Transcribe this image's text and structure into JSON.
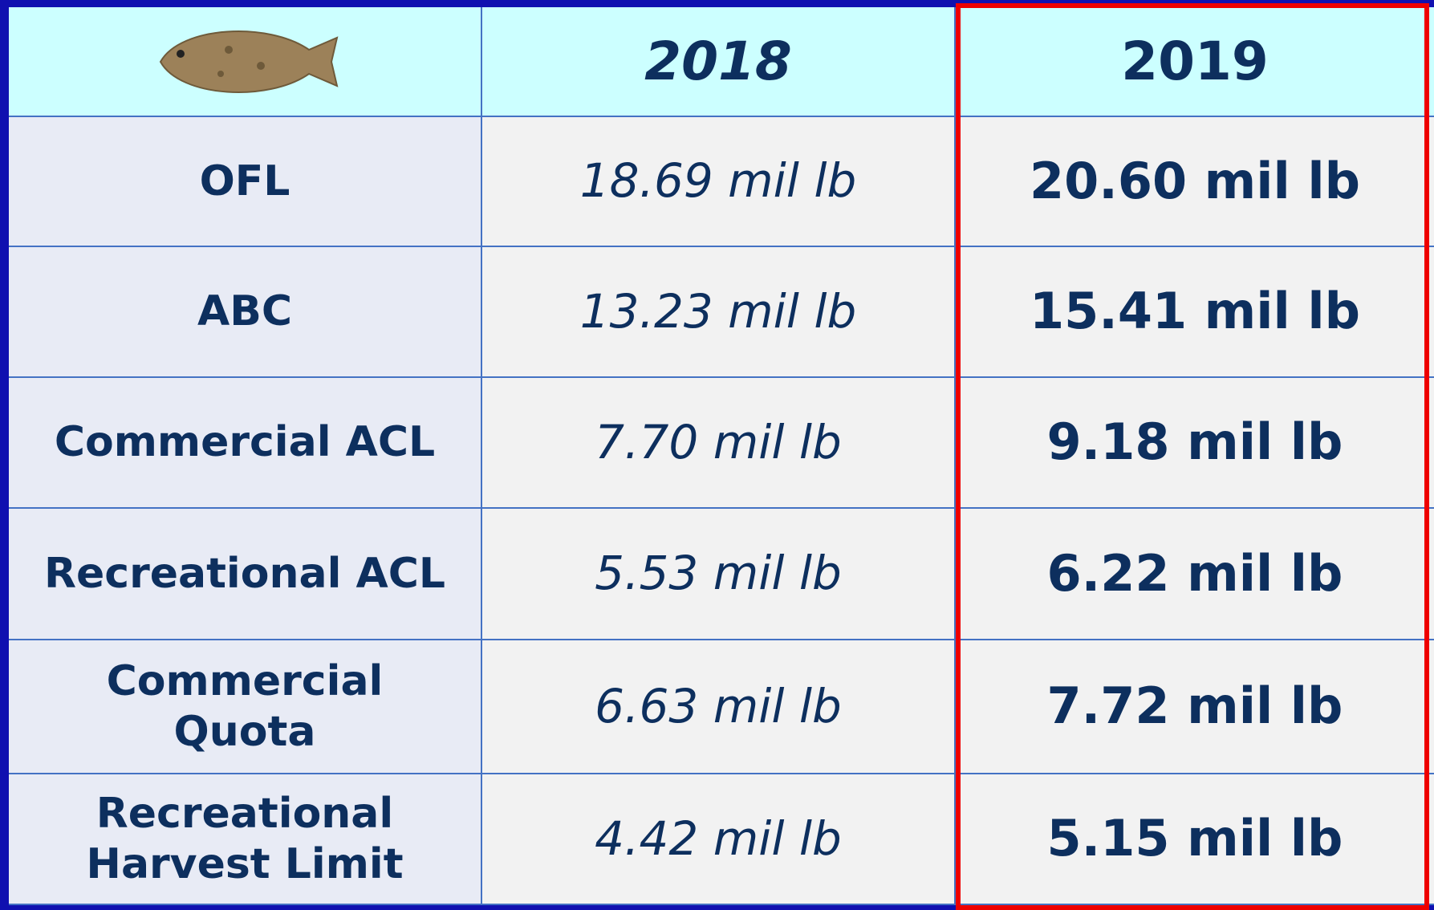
{
  "table": {
    "header": [
      "2018",
      "2019"
    ],
    "rows": [
      [
        "OFL",
        "18.69 mil lb",
        "20.60 mil lb"
      ],
      [
        "ABC",
        "13.23 mil lb",
        "15.41 mil lb"
      ],
      [
        "Commercial ACL",
        "7.70 mil lb",
        "9.18 mil lb"
      ],
      [
        "Recreational ACL",
        "5.53 mil lb",
        "6.22 mil lb"
      ],
      [
        "Commercial\nQuota",
        "6.63 mil lb",
        "7.72 mil lb"
      ],
      [
        "Recreational\nHarvest Limit",
        "4.42 mil lb",
        "5.15 mil lb"
      ]
    ]
  }
}
